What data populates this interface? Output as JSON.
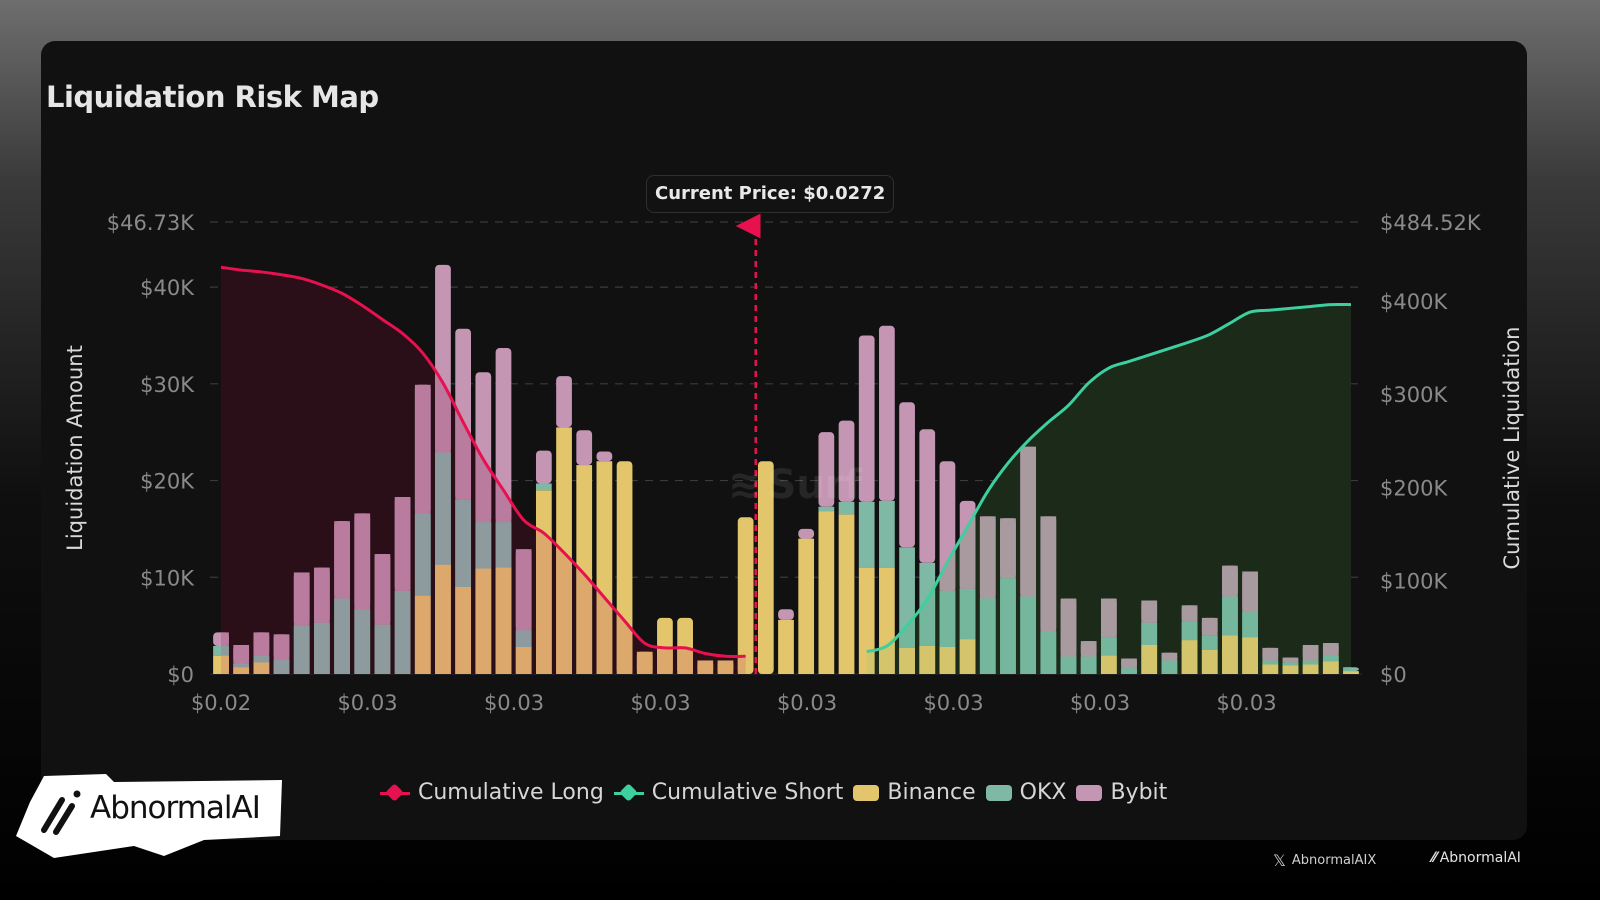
{
  "header": {
    "title": "Liquidation Risk Map"
  },
  "current_price": {
    "label": "Current Price: $0.0272"
  },
  "watermark": {
    "text": "Surf"
  },
  "legend": [
    {
      "label": "Cumulative Long",
      "color": "#e8114f",
      "kind": "line"
    },
    {
      "label": "Cumulative Short",
      "color": "#3ecf9e",
      "kind": "line"
    },
    {
      "label": "Binance",
      "color": "#e3c66b",
      "kind": "box"
    },
    {
      "label": "OKX",
      "color": "#7fb8a4",
      "kind": "box"
    },
    {
      "label": "Bybit",
      "color": "#c596b4",
      "kind": "box"
    }
  ],
  "branding": {
    "badge_text": "AbnormalAI",
    "footer_handle": "AbnormalAIX",
    "footer_logo_text": "AbnormalAI"
  },
  "chart_data": {
    "type": "bar",
    "title": "Liquidation Risk Map",
    "ylabel": "Liquidation Amount",
    "y2label": "Cumulative Liquidation",
    "ylim": [
      0,
      46730
    ],
    "y2lim": [
      0,
      484520
    ],
    "yticks": [
      "$0",
      "$10K",
      "$20K",
      "$30K",
      "$40K",
      "$46.73K"
    ],
    "y2ticks": [
      "$0",
      "$100K",
      "$200K",
      "$300K",
      "$400K",
      "$484.52K"
    ],
    "xticks": [
      "$0.02",
      "$0.03",
      "$0.03",
      "$0.03",
      "$0.03",
      "$0.03",
      "$0.03",
      "$0.03"
    ],
    "grid": true,
    "legend_position": "bottom",
    "current_price": 0.0272,
    "current_price_index": 26.5,
    "series": [
      {
        "name": "Binance",
        "values": [
          1900,
          700,
          1200,
          0,
          0,
          0,
          0,
          0,
          0,
          0,
          8100,
          11300,
          9000,
          10900,
          11000,
          2800,
          19000,
          25500,
          21600,
          22000,
          22000,
          2300,
          5800,
          5800,
          1400,
          1400,
          16200,
          22000,
          5600,
          14000,
          16800,
          16500,
          11000,
          11000,
          2700,
          2900,
          2800,
          3600,
          0,
          0,
          0,
          0,
          0,
          0,
          1900,
          0,
          3000,
          0,
          3500,
          2500,
          4000,
          3800,
          1000,
          900,
          1000,
          1300,
          300
        ]
      },
      {
        "name": "OKX",
        "values": [
          1000,
          400,
          700,
          1500,
          5000,
          5300,
          7800,
          6700,
          5100,
          8600,
          8500,
          11600,
          9000,
          4800,
          4700,
          1700,
          700,
          0,
          0,
          0,
          0,
          0,
          0,
          0,
          0,
          0,
          0,
          0,
          0,
          0,
          500,
          1300,
          6800,
          6900,
          10400,
          8600,
          5800,
          5200,
          7800,
          9900,
          8000,
          4400,
          1800,
          1800,
          1900,
          600,
          2300,
          1400,
          1900,
          1500,
          4000,
          2600,
          400,
          300,
          400,
          600,
          400
        ]
      },
      {
        "name": "Bybit",
        "values": [
          1400,
          1900,
          2400,
          2600,
          5500,
          5700,
          8000,
          9900,
          7300,
          9700,
          13300,
          19400,
          17700,
          15500,
          18000,
          8400,
          3400,
          5300,
          3600,
          1000,
          0,
          0,
          0,
          0,
          0,
          0,
          0,
          0,
          1100,
          1000,
          7700,
          8400,
          17200,
          18100,
          15000,
          13800,
          13400,
          9100,
          8500,
          6200,
          15500,
          11900,
          6000,
          1600,
          4000,
          1000,
          2300,
          800,
          1700,
          1800,
          3200,
          4200,
          1300,
          500,
          1600,
          1300,
          0
        ]
      }
    ],
    "cumulative_long": [
      436000,
      433000,
      431000,
      428000,
      424000,
      417000,
      408000,
      395000,
      380000,
      365000,
      344000,
      312000,
      270000,
      230000,
      197000,
      165000,
      151000,
      130000,
      107000,
      82000,
      57000,
      33000,
      28000,
      28000,
      22000,
      19000,
      19000
    ],
    "cumulative_short": [
      24000,
      30000,
      52000,
      80000,
      120000,
      158000,
      196000,
      226000,
      250000,
      270000,
      288000,
      312000,
      328000,
      335000,
      342000,
      349000,
      356000,
      364000,
      376000,
      388000,
      390000,
      392000,
      394000,
      396000,
      396000
    ]
  }
}
